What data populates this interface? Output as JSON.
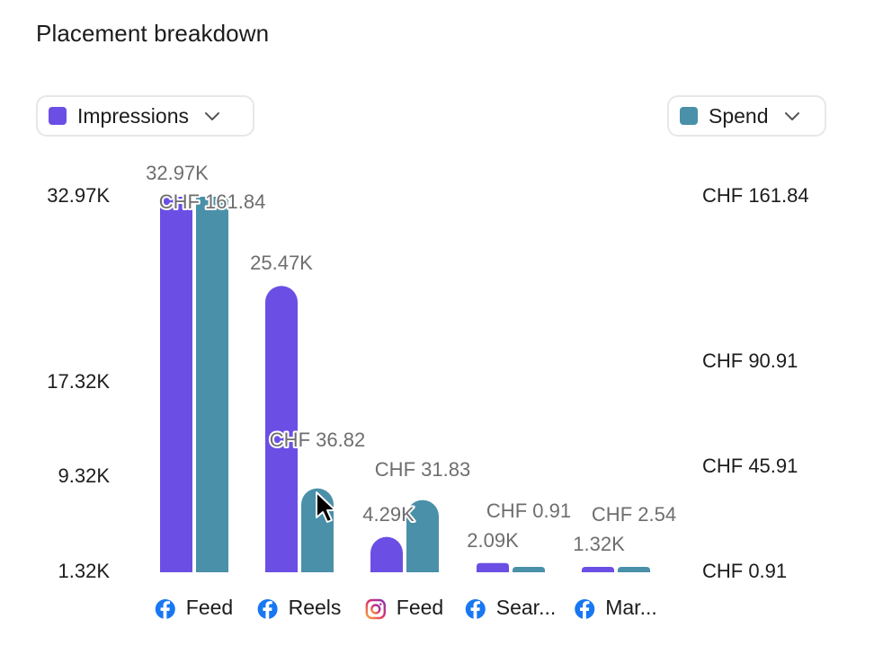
{
  "header": {
    "title": "Placement breakdown"
  },
  "controls": {
    "left_metric": {
      "label": "Impressions",
      "color": "#6b4fe4",
      "icon": "chevron-down-icon"
    },
    "right_metric": {
      "label": "Spend",
      "color": "#4a90a9",
      "icon": "chevron-down-icon"
    }
  },
  "chart_data": {
    "type": "bar",
    "categories": [
      {
        "label": "Feed",
        "platform": "facebook-icon"
      },
      {
        "label": "Reels",
        "platform": "facebook-icon"
      },
      {
        "label": "Feed",
        "platform": "instagram-icon"
      },
      {
        "label": "Sear...",
        "platform": "facebook-icon"
      },
      {
        "label": "Mar...",
        "platform": "facebook-icon"
      }
    ],
    "series": [
      {
        "name": "Impressions",
        "axis": "left",
        "color": "#6b4fe4",
        "values": [
          32970,
          25470,
          4290,
          2090,
          1320
        ],
        "labels": [
          "32.97K",
          "25.47K",
          "4.29K",
          "2.09K",
          "1.32K"
        ]
      },
      {
        "name": "Spend",
        "axis": "right",
        "color": "#4a90a9",
        "values": [
          161.84,
          36.82,
          31.83,
          0.91,
          2.54
        ],
        "labels": [
          "CHF 161.84",
          "CHF 36.82",
          "CHF 31.83",
          "CHF 0.91",
          "CHF 2.54"
        ]
      }
    ],
    "left_axis": {
      "ticks": [
        32970,
        17320,
        9320,
        1320
      ],
      "tick_labels": [
        "32.97K",
        "17.32K",
        "9.32K",
        "1.32K"
      ]
    },
    "right_axis": {
      "ticks": [
        161.84,
        90.91,
        45.91,
        0.91
      ],
      "tick_labels": [
        "CHF 161.84",
        "CHF 90.91",
        "CHF 45.91",
        "CHF 0.91"
      ]
    },
    "grid": false,
    "legend": "top"
  }
}
